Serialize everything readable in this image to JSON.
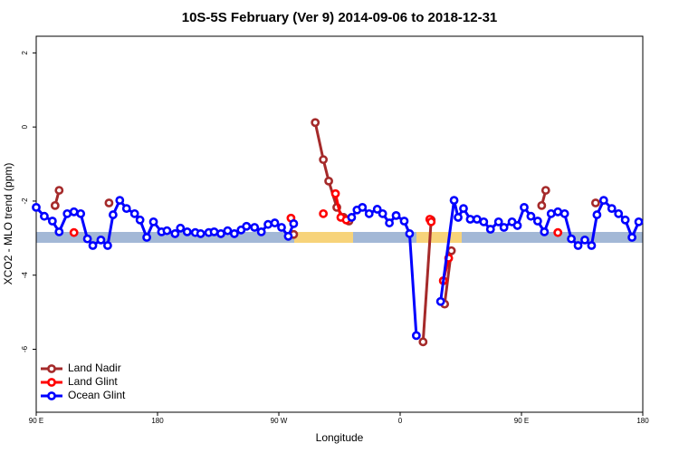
{
  "chart_data": {
    "type": "line",
    "title": "10S-5S February (Ver 9)   2014-09-06 to 2018-12-31",
    "x_label": "Longitude",
    "y_label": "XCO2 - MLO trend (ppm)",
    "xlim": [
      90,
      540
    ],
    "ylim": [
      -7.7,
      2.45
    ],
    "xticks": [
      {
        "value": 90,
        "label": "90 E"
      },
      180,
      {
        "value": 270,
        "label": "90 W"
      },
      {
        "value": 360,
        "label": "0"
      },
      {
        "value": 450,
        "label": "90 E"
      },
      {
        "value": 540,
        "label": "180"
      }
    ],
    "yticks": [
      2,
      0,
      -2,
      -4,
      -6
    ],
    "legend": "bottom-left",
    "series": [
      {
        "name": "Land Nadir",
        "color": "#a52a2a",
        "x": [
          104,
          107,
          null,
          144,
          null,
          281,
          null,
          297,
          303,
          307,
          313,
          318,
          322,
          null,
          377,
          383,
          null,
          393,
          398,
          null,
          465,
          468,
          null,
          505
        ],
        "values": [
          -2.12,
          -1.71,
          null,
          -2.05,
          null,
          -2.9,
          null,
          0.12,
          -0.88,
          -1.46,
          -2.17,
          -2.44,
          -2.54,
          null,
          -5.8,
          -2.51,
          null,
          -4.78,
          -3.34,
          null,
          -2.12,
          -1.71,
          null,
          -2.05
        ]
      },
      {
        "name": "Land Glint",
        "color": "#ff0000",
        "x": [
          118,
          null,
          279,
          null,
          303,
          null,
          312,
          316,
          320,
          null,
          382,
          383,
          null,
          392,
          396,
          null,
          477
        ],
        "values": [
          -2.85,
          null,
          -2.46,
          null,
          -2.34,
          null,
          -1.8,
          -2.44,
          -2.51,
          null,
          -2.49,
          -2.56,
          null,
          -4.15,
          -3.54,
          null,
          -2.85
        ]
      },
      {
        "name": "Ocean Glint",
        "color": "#0000ff",
        "x": [
          90,
          96,
          102,
          107,
          113,
          118,
          123,
          128,
          132,
          138,
          143,
          147,
          152,
          157,
          163,
          167,
          172,
          177,
          183,
          187,
          193,
          197,
          202,
          208,
          212,
          218,
          222,
          227,
          232,
          237,
          242,
          246,
          252,
          257,
          262,
          267,
          272,
          277,
          281,
          null,
          324,
          328,
          332,
          337,
          343,
          347,
          352,
          357,
          363,
          367,
          372,
          null,
          390,
          400,
          403,
          407,
          412,
          417,
          422,
          427,
          433,
          437,
          443,
          447,
          452,
          457,
          462,
          467,
          472,
          477,
          482,
          487,
          492,
          497,
          502,
          506,
          511,
          517,
          522,
          527,
          532,
          537
        ],
        "values": [
          -2.17,
          -2.41,
          -2.54,
          -2.83,
          -2.34,
          -2.29,
          -2.34,
          -3.02,
          -3.2,
          -3.05,
          -3.2,
          -2.37,
          -1.98,
          -2.2,
          -2.34,
          -2.51,
          -2.98,
          -2.56,
          -2.83,
          -2.8,
          -2.88,
          -2.73,
          -2.83,
          -2.85,
          -2.88,
          -2.85,
          -2.83,
          -2.88,
          -2.8,
          -2.88,
          -2.78,
          -2.68,
          -2.71,
          -2.83,
          -2.63,
          -2.59,
          -2.71,
          -2.95,
          -2.61,
          null,
          -2.44,
          -2.24,
          -2.17,
          -2.34,
          -2.22,
          -2.34,
          -2.59,
          -2.39,
          -2.54,
          -2.88,
          -5.63,
          null,
          -4.71,
          -1.98,
          -2.44,
          -2.2,
          -2.49,
          -2.49,
          -2.56,
          -2.76,
          -2.56,
          -2.71,
          -2.56,
          -2.66,
          -2.17,
          -2.41,
          -2.54,
          -2.83,
          -2.34,
          -2.29,
          -2.34,
          -3.02,
          -3.2,
          -3.05,
          -3.2,
          -2.37,
          -1.98,
          -2.2,
          -2.34,
          -2.51,
          -2.98,
          -2.56
        ]
      }
    ]
  }
}
